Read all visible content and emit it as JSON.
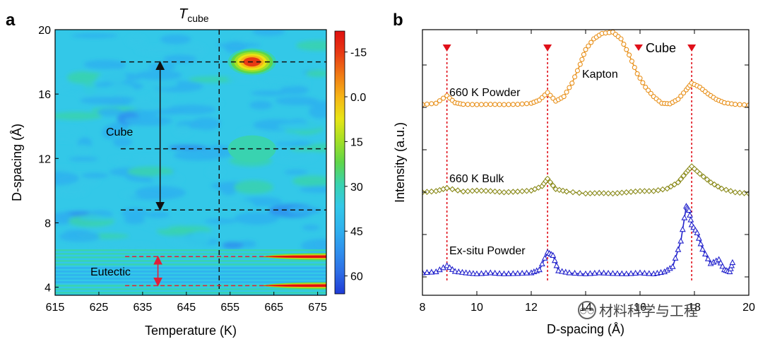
{
  "watermark": {
    "text": "材料科学与工程"
  },
  "panel_a": {
    "letter": "a",
    "title_main": "T",
    "title_sub": "cube",
    "annotations": {
      "cube": "Cube",
      "eutectic": "Eutectic"
    }
  },
  "panel_b": {
    "letter": "b",
    "legend_label": "Cube",
    "annotations": {
      "kapton": "Kapton",
      "powder_660": "660 K  Powder",
      "bulk_660": "660 K  Bulk",
      "exsitu": "Ex-situ Powder"
    }
  },
  "chart_data": [
    {
      "type": "heatmap",
      "xlabel": "Temperature (K)",
      "ylabel": "D-spacing (Å)",
      "xlim": [
        615,
        677
      ],
      "ylim": [
        3.5,
        20
      ],
      "xticks": [
        "615",
        "625",
        "635",
        "645",
        "655",
        "665",
        "675"
      ],
      "yticks": [
        "4",
        "8",
        "12",
        "16",
        "20"
      ],
      "colorbar": {
        "ticks": [
          "-15",
          "0.0",
          "15",
          "30",
          "45",
          "60"
        ],
        "range": [
          -22,
          66
        ],
        "colors": [
          "#1f3bd6",
          "#2e6ee6",
          "#2f92ee",
          "#2fb3ee",
          "#33c8e8",
          "#39d3b0",
          "#5fd64a",
          "#a4e025",
          "#e8e515",
          "#f6b516",
          "#f07a14",
          "#e83a14",
          "#e01010"
        ]
      },
      "background_value": 5,
      "hotspots": [
        {
          "t": 660,
          "d": 18.0,
          "value": 55,
          "label": ""
        },
        {
          "t": 660,
          "d": 12.6,
          "value": 18,
          "label": ""
        },
        {
          "t": 672,
          "d": 5.9,
          "value": 66,
          "label": ""
        },
        {
          "t": 672,
          "d": 4.1,
          "value": 66,
          "label": ""
        }
      ],
      "dashed_lines": {
        "vertical_t": 652.5,
        "horizontal_d": [
          18.0,
          12.6,
          8.8
        ],
        "eutectic_d": [
          5.9,
          4.1
        ]
      },
      "arrows": [
        {
          "name": "Cube",
          "t": 639,
          "from_d": 18.0,
          "to_d": 8.8
        },
        {
          "name": "Eutectic",
          "t": 638.5,
          "from_d": 5.9,
          "to_d": 4.1
        }
      ]
    },
    {
      "type": "line",
      "xlabel": "D-spacing (Å)",
      "ylabel": "Intensity (a.u.)",
      "xlim": [
        8,
        20
      ],
      "xticks": [
        "8",
        "10",
        "12",
        "14",
        "16",
        "18",
        "20"
      ],
      "cube_peaks_x": [
        8.9,
        12.6,
        17.9
      ],
      "series": [
        {
          "name": "660 K  Powder",
          "marker": "circle",
          "color": "#e8901a",
          "x": [
            8.0,
            8.5,
            8.9,
            9.2,
            9.5,
            10.0,
            10.5,
            11.0,
            11.5,
            12.0,
            12.3,
            12.6,
            12.9,
            13.2,
            13.5,
            13.8,
            14.0,
            14.3,
            14.6,
            15.0,
            15.3,
            15.6,
            15.9,
            16.2,
            16.5,
            16.8,
            17.1,
            17.4,
            17.7,
            17.9,
            18.2,
            18.5,
            18.8,
            19.1,
            19.5,
            20.0
          ],
          "y": [
            0.05,
            0.1,
            0.38,
            0.12,
            0.06,
            0.05,
            0.06,
            0.05,
            0.06,
            0.1,
            0.22,
            0.5,
            0.18,
            0.35,
            0.85,
            1.55,
            2.1,
            2.5,
            2.7,
            2.75,
            2.5,
            1.9,
            1.2,
            0.7,
            0.35,
            0.1,
            0.08,
            0.25,
            0.6,
            0.85,
            0.7,
            0.45,
            0.25,
            0.12,
            0.06,
            0.03
          ]
        },
        {
          "name": "660 K  Bulk",
          "marker": "diamond",
          "color": "#8a8a1a",
          "x": [
            8.0,
            8.5,
            8.9,
            9.5,
            10.0,
            10.5,
            11.0,
            11.5,
            12.0,
            12.4,
            12.6,
            12.9,
            13.3,
            14.0,
            14.5,
            15.0,
            15.5,
            16.0,
            16.5,
            17.0,
            17.4,
            17.7,
            17.9,
            18.2,
            18.6,
            19.0,
            19.5,
            20.0
          ],
          "y": [
            0.05,
            0.1,
            0.22,
            0.08,
            0.12,
            0.1,
            0.05,
            0.08,
            0.12,
            0.3,
            0.6,
            0.18,
            0.08,
            0.0,
            0.02,
            0.0,
            0.05,
            0.1,
            0.1,
            0.2,
            0.45,
            0.85,
            1.1,
            0.8,
            0.45,
            0.2,
            0.05,
            0.0
          ]
        },
        {
          "name": "Ex-situ Powder",
          "marker": "triangle",
          "color": "#2222cc",
          "x": [
            8.0,
            8.5,
            8.9,
            9.2,
            9.6,
            10.0,
            10.5,
            11.0,
            11.5,
            12.0,
            12.3,
            12.6,
            12.8,
            13.0,
            13.4,
            14.0,
            14.5,
            15.0,
            15.5,
            16.0,
            16.5,
            16.9,
            17.2,
            17.5,
            17.7,
            17.8,
            17.9,
            18.1,
            18.3,
            18.6,
            18.9,
            19.1,
            19.3,
            19.4
          ],
          "y": [
            0.05,
            0.1,
            0.4,
            0.12,
            0.05,
            0.0,
            0.05,
            0.0,
            0.02,
            0.05,
            0.2,
            1.05,
            0.9,
            0.15,
            0.05,
            0.0,
            0.05,
            0.02,
            0.0,
            0.05,
            0.0,
            0.1,
            0.35,
            1.6,
            3.3,
            3.1,
            2.4,
            2.0,
            1.2,
            0.5,
            0.7,
            0.2,
            0.1,
            0.55
          ]
        }
      ]
    }
  ]
}
